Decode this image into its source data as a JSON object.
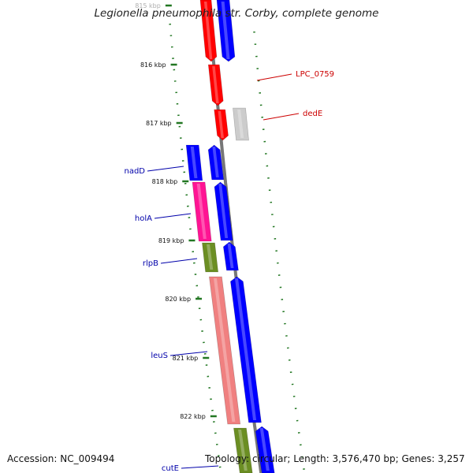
{
  "title": "Legionella pneumophila str. Corby, complete genome",
  "footer": {
    "accession": "Accession: NC_009494",
    "stats": "Topology: circular; Length: 3,576,470 bp; Genes: 3,257"
  },
  "colors": {
    "backbone": "#777777",
    "tick": "#227722",
    "label_blue": "#0000aa",
    "label_red": "#cc0000"
  },
  "ticks": [
    {
      "label": "815 kbp",
      "faded": true
    },
    {
      "label": "816 kbp"
    },
    {
      "label": "817 kbp"
    },
    {
      "label": "818 kbp"
    },
    {
      "label": "819 kbp"
    },
    {
      "label": "820 kbp"
    },
    {
      "label": "821 kbp"
    },
    {
      "label": "822 kbp"
    }
  ],
  "genes": [
    {
      "label": "LPC_0759",
      "color": "#ff0000",
      "label_color": "red"
    },
    {
      "label": "dedE",
      "color": "#cccccc",
      "label_color": "red"
    },
    {
      "label": "nadD",
      "color": "#0000ff",
      "label_color": "blue"
    },
    {
      "label": "holA",
      "color": "#ff1493",
      "label_color": "blue"
    },
    {
      "label": "rlpB",
      "color": "#6b8e23",
      "label_color": "blue"
    },
    {
      "label": "leuS",
      "color": "#f08080",
      "label_color": "blue"
    },
    {
      "label": "cutE",
      "color": "#6b8e23",
      "label_color": "blue"
    }
  ],
  "feature_colors": {
    "red": "#ff0000",
    "blue": "#0000ff",
    "gray": "#cccccc",
    "pink": "#ff1493",
    "olive": "#6b8e23",
    "salmon": "#f08080"
  }
}
